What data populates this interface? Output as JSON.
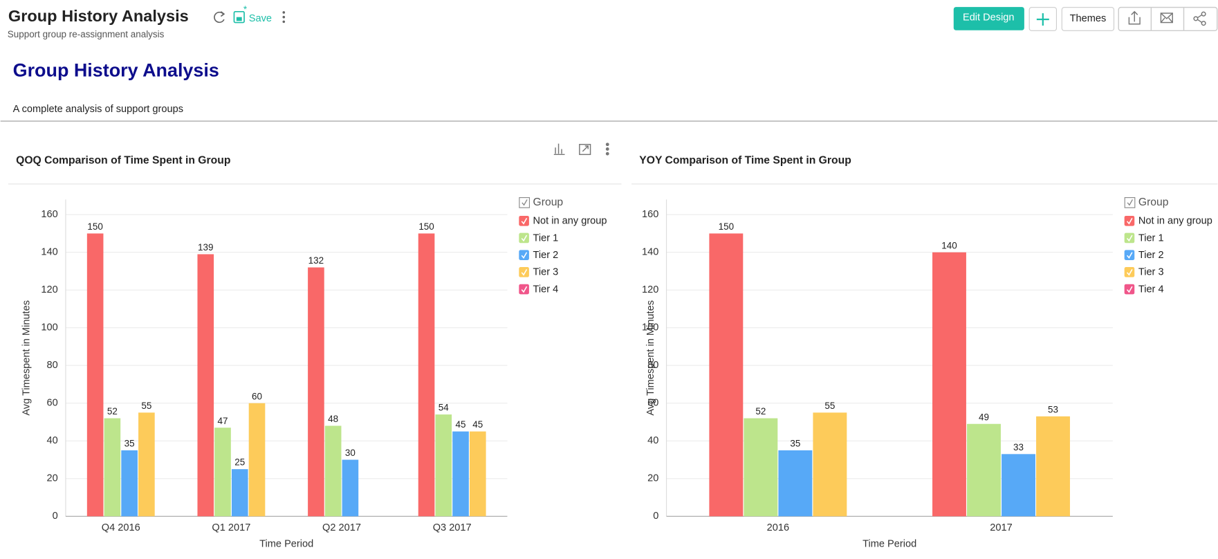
{
  "header": {
    "title": "Group History Analysis",
    "subtitle": "Support group re-assignment analysis",
    "save": "Save",
    "buttons": [
      "Edit Design",
      "Themes"
    ]
  },
  "report": {
    "title": "Group History Analysis",
    "description": "A complete analysis of support groups"
  },
  "chart_data": [
    {
      "type": "bar",
      "title": "QOQ Comparison of Time Spent in Group",
      "x_label": "Time Period",
      "y_label": "Avg Timespent in Minutes",
      "legend_title": "Group",
      "legend": "right",
      "grid": true,
      "categories": [
        "Q4 2016",
        "Q1 2017",
        "Q2 2017",
        "Q3 2017"
      ],
      "series": [
        {
          "name": "Not in any group",
          "color": "#f96868",
          "values": [
            150,
            139,
            132,
            150
          ]
        },
        {
          "name": "Tier 1",
          "color": "#bde58c",
          "values": [
            52,
            47,
            48,
            54
          ]
        },
        {
          "name": "Tier 2",
          "color": "#57a9f7",
          "values": [
            35,
            25,
            30,
            45
          ]
        },
        {
          "name": "Tier 3",
          "color": "#fdcb5a",
          "values": [
            55,
            60,
            null,
            45
          ]
        },
        {
          "name": "Tier 4",
          "color": "#f0568a",
          "values": [
            null,
            null,
            null,
            null
          ]
        }
      ],
      "ylim": [
        0,
        168
      ],
      "yticks": [
        0,
        20,
        40,
        60,
        80,
        100,
        120,
        140,
        160
      ]
    },
    {
      "type": "bar",
      "title": "YOY Comparison of Time Spent in Group",
      "x_label": "Time Period",
      "y_label": "Avg Timespent in Minutes",
      "legend_title": "Group",
      "legend": "right",
      "grid": true,
      "categories": [
        "2016",
        "2017"
      ],
      "series": [
        {
          "name": "Not in any group",
          "color": "#f96868",
          "values": [
            150,
            140
          ]
        },
        {
          "name": "Tier 1",
          "color": "#bde58c",
          "values": [
            52,
            49
          ]
        },
        {
          "name": "Tier 2",
          "color": "#57a9f7",
          "values": [
            35,
            33
          ]
        },
        {
          "name": "Tier 3",
          "color": "#fdcb5a",
          "values": [
            55,
            53
          ]
        },
        {
          "name": "Tier 4",
          "color": "#f0568a",
          "values": [
            null,
            null
          ]
        }
      ],
      "ylim": [
        0,
        168
      ],
      "yticks": [
        0,
        20,
        40,
        60,
        80,
        100,
        120,
        140,
        160
      ]
    }
  ]
}
